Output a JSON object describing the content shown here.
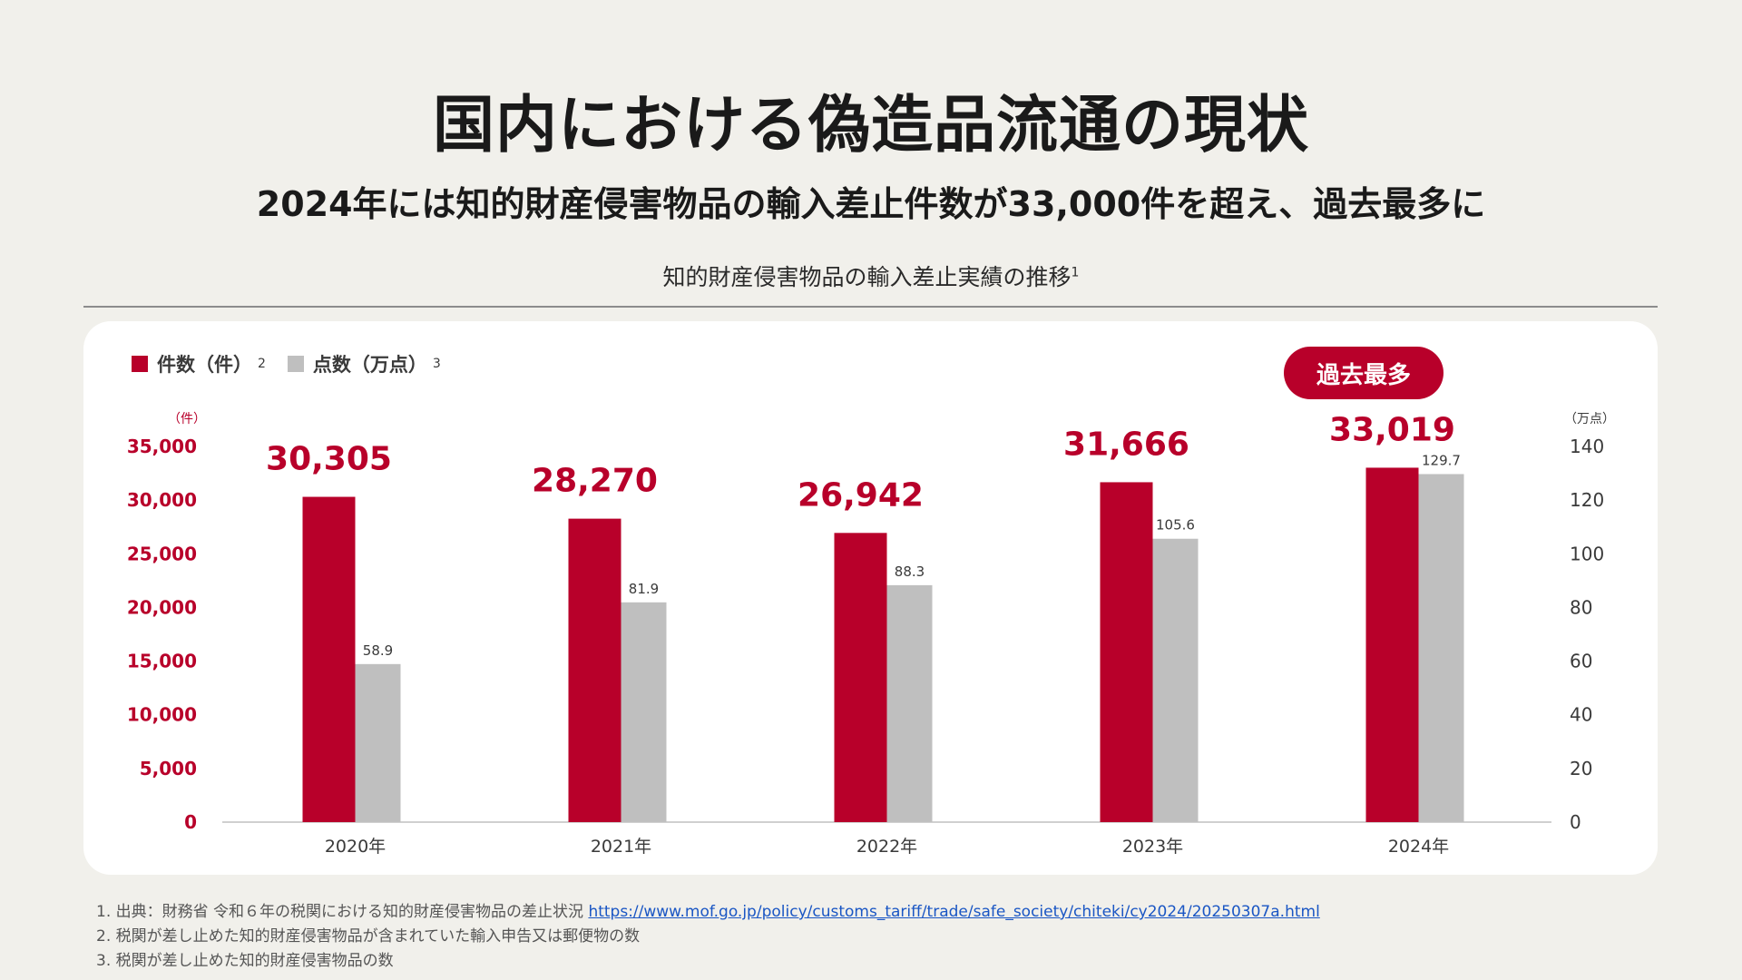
{
  "header": {
    "title": "国内における偽造品流通の現状",
    "subtitle": "2024年には知的財産侵害物品の輸入差止件数が33,000件を超え、過去最多に",
    "chart_heading": "知的財産侵害物品の輸入差止実績の推移",
    "chart_heading_sup": "1"
  },
  "legend": {
    "items": [
      {
        "label": "件数（件）",
        "sup": "2",
        "color": "#b8002a"
      },
      {
        "label": "点数（万点）",
        "sup": "3",
        "color": "#bfbfbf"
      }
    ]
  },
  "badge": {
    "label": "過去最多"
  },
  "chart_data": {
    "type": "bar",
    "categories": [
      "2020年",
      "2021年",
      "2022年",
      "2023年",
      "2024年"
    ],
    "series": [
      {
        "name": "件数（件）",
        "axis": "left",
        "color": "#b8002a",
        "values": [
          30305,
          28270,
          26942,
          31666,
          33019
        ],
        "labels": [
          "30,305",
          "28,270",
          "26,942",
          "31,666",
          "33,019"
        ]
      },
      {
        "name": "点数（万点）",
        "axis": "right",
        "color": "#bfbfbf",
        "values": [
          58.9,
          81.9,
          88.3,
          105.6,
          129.7
        ],
        "labels": [
          "58.9",
          "81.9",
          "88.3",
          "105.6",
          "129.7"
        ]
      }
    ],
    "left_axis": {
      "unit": "（件）",
      "ylim": [
        0,
        35000
      ],
      "ticks": [
        "0",
        "5,000",
        "10,000",
        "15,000",
        "20,000",
        "25,000",
        "30,000",
        "35,000"
      ]
    },
    "right_axis": {
      "unit": "（万点）",
      "ylim": [
        0,
        140
      ],
      "ticks": [
        "0",
        "20",
        "40",
        "60",
        "80",
        "100",
        "120",
        "140"
      ]
    },
    "grid": false
  },
  "footnotes": {
    "n1_text": "1. 出典：財務省 令和６年の税関における知的財産侵害物品の差止状況 ",
    "n1_link": "https://www.mof.go.jp/policy/customs_tariff/trade/safe_society/chiteki/cy2024/20250307a.html",
    "n2": "2. 税関が差し止めた知的財産侵害物品が含まれていた輸入申告又は郵便物の数",
    "n3": "3. 税関が差し止めた知的財産侵害物品の数"
  },
  "colors": {
    "accent": "#b8002a",
    "secondary": "#bfbfbf",
    "background": "#f1f0eb",
    "card": "#ffffff"
  }
}
